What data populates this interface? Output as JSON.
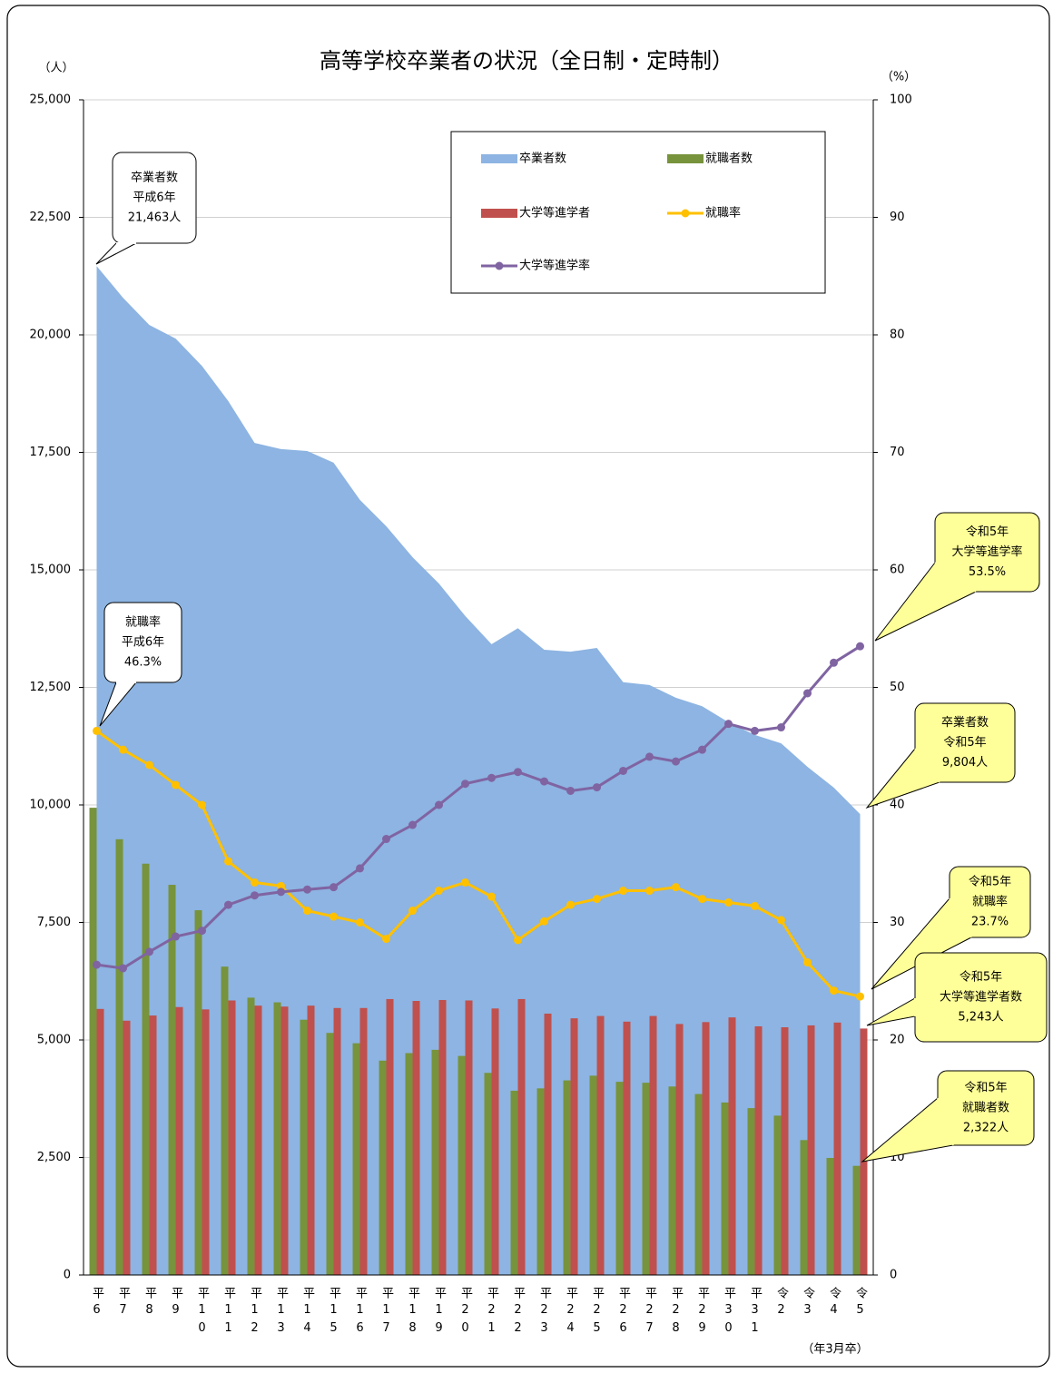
{
  "chart_data": {
    "type": "combo",
    "title": "高等学校卒業者の状況（全日制・定時制）",
    "y_label": "（人）",
    "y2_label": "（%）",
    "x_label": "（年3月卒）",
    "categories": [
      "平6",
      "平7",
      "平8",
      "平9",
      "平10",
      "平11",
      "平12",
      "平13",
      "平14",
      "平15",
      "平16",
      "平17",
      "平18",
      "平19",
      "平20",
      "平21",
      "平22",
      "平23",
      "平24",
      "平25",
      "平26",
      "平27",
      "平28",
      "平29",
      "平30",
      "平31",
      "令2",
      "令3",
      "令4",
      "令5"
    ],
    "ylim": [
      0,
      25000
    ],
    "yticks": [
      0,
      {
        "value": 2500,
        "label": "2,500"
      },
      {
        "value": 5000,
        "label": "5,000"
      },
      {
        "value": 7500,
        "label": "7,500"
      },
      {
        "value": 10000,
        "label": "10,000"
      },
      {
        "value": 12500,
        "label": "12,500"
      },
      {
        "value": 15000,
        "label": "15,000"
      },
      {
        "value": 17500,
        "label": "17,500"
      },
      {
        "value": 20000,
        "label": "20,000"
      },
      {
        "value": 22500,
        "label": "22,500"
      },
      {
        "value": 25000,
        "label": "25,000"
      }
    ],
    "y2lim": [
      0,
      100
    ],
    "y2ticks": [
      0,
      10,
      20,
      30,
      40,
      50,
      60,
      70,
      80,
      90,
      100
    ],
    "grid": true,
    "series": [
      {
        "name": "卒業者数",
        "type": "area",
        "color": "#8db4e2",
        "values": [
          21463,
          20790,
          20210,
          19920,
          19340,
          18590,
          17700,
          17570,
          17530,
          17280,
          16490,
          15930,
          15270,
          14710,
          14020,
          13420,
          13760,
          13300,
          13260,
          13340,
          12610,
          12550,
          12280,
          12100,
          11760,
          11490,
          11310,
          10810,
          10370,
          9804
        ]
      },
      {
        "name": "就職者数",
        "type": "bar",
        "color": "#77933c",
        "values": [
          9940,
          9270,
          8750,
          8300,
          7760,
          6560,
          5900,
          5800,
          5430,
          5150,
          4930,
          4560,
          4720,
          4790,
          4660,
          4300,
          3920,
          3970,
          4140,
          4240,
          4110,
          4090,
          4010,
          3850,
          3670,
          3550,
          3390,
          2870,
          2490,
          2322
        ]
      },
      {
        "name": "大学等進学者",
        "type": "bar",
        "color": "#c0504d",
        "values": [
          5660,
          5410,
          5520,
          5700,
          5650,
          5840,
          5730,
          5710,
          5730,
          5680,
          5680,
          5870,
          5830,
          5850,
          5840,
          5670,
          5870,
          5560,
          5460,
          5510,
          5390,
          5510,
          5340,
          5380,
          5480,
          5290,
          5270,
          5310,
          5370,
          5243
        ]
      },
      {
        "name": "就職率",
        "type": "line",
        "axis": "y2",
        "color": "#ffc000",
        "values": [
          46.3,
          44.7,
          43.4,
          41.7,
          40.0,
          35.2,
          33.4,
          33.1,
          31.0,
          30.5,
          30.0,
          28.6,
          31.0,
          32.7,
          33.4,
          32.2,
          28.5,
          30.1,
          31.5,
          32.0,
          32.7,
          32.7,
          33.0,
          32.0,
          31.7,
          31.4,
          30.2,
          26.6,
          24.2,
          23.7
        ]
      },
      {
        "name": "大学等進学率",
        "type": "line",
        "axis": "y2",
        "color": "#8064a2",
        "values": [
          26.4,
          26.1,
          27.5,
          28.8,
          29.3,
          31.5,
          32.3,
          32.6,
          32.8,
          33.0,
          34.6,
          37.1,
          38.3,
          40.0,
          41.8,
          42.3,
          42.8,
          42.0,
          41.2,
          41.5,
          42.9,
          44.1,
          43.7,
          44.7,
          46.9,
          46.3,
          46.6,
          49.5,
          52.1,
          53.5
        ]
      }
    ],
    "annotations": [
      {
        "lines": [
          "卒業者数",
          "平成6年",
          "21,463人"
        ]
      },
      {
        "lines": [
          "就職率",
          "平成6年",
          "46.3%"
        ]
      },
      {
        "lines": [
          "令和5年",
          "大学等進学率",
          "53.5%"
        ]
      },
      {
        "lines": [
          "卒業者数",
          "令和5年",
          "9,804人"
        ]
      },
      {
        "lines": [
          "令和5年",
          "就職率",
          "23.7%"
        ]
      },
      {
        "lines": [
          "令和5年",
          "大学等進学者数",
          "5,243人"
        ]
      },
      {
        "lines": [
          "令和5年",
          "就職者数",
          "2,322人"
        ]
      }
    ]
  }
}
